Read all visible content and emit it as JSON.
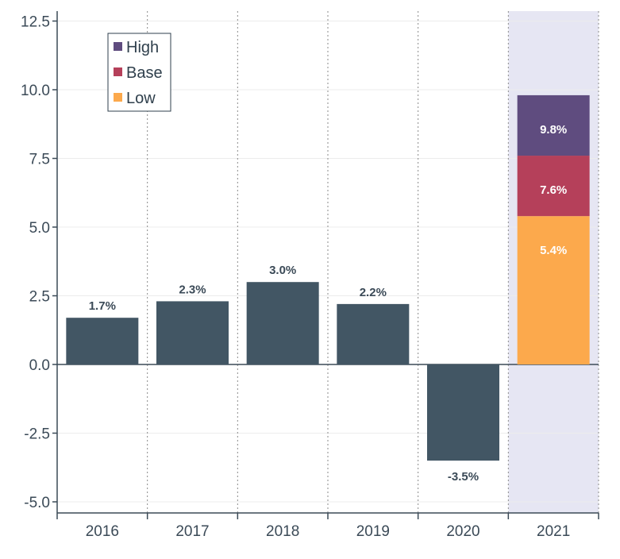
{
  "chart_data": {
    "type": "bar",
    "title": "",
    "xlabel": "",
    "ylabel": "",
    "ylim": [
      -5.5,
      13.0
    ],
    "yticks": [
      12.5,
      10.0,
      7.5,
      5.0,
      2.5,
      0.0,
      -2.5,
      -5.0
    ],
    "ytick_labels": [
      "12.5",
      "10.0",
      "7.5",
      "5.0",
      "2.5",
      "0.0",
      "-2.5",
      "-5.0"
    ],
    "categories": [
      "2016",
      "2017",
      "2018",
      "2019",
      "2020",
      "2021"
    ],
    "series": [
      {
        "name": "",
        "values": [
          1.7,
          2.3,
          3.0,
          2.2,
          -3.5,
          null
        ],
        "labels": [
          "1.7%",
          "2.3%",
          "3.0%",
          "2.2%",
          "-3.5%",
          ""
        ],
        "color": "#425664"
      },
      {
        "name": "Low",
        "values": [
          null,
          null,
          null,
          null,
          null,
          5.4
        ],
        "labels": [
          "",
          "",
          "",
          "",
          "",
          "5.4%"
        ],
        "color": "#fca94c"
      },
      {
        "name": "Base",
        "values": [
          null,
          null,
          null,
          null,
          null,
          7.6
        ],
        "labels": [
          "",
          "",
          "",
          "",
          "",
          "7.6%"
        ],
        "color": "#b5405a"
      },
      {
        "name": "High",
        "values": [
          null,
          null,
          null,
          null,
          null,
          9.8
        ],
        "labels": [
          "",
          "",
          "",
          "",
          "",
          "9.8%"
        ],
        "color": "#5f4c7f"
      }
    ],
    "highlight_category": "2021",
    "highlight_color": "#e6e6f3",
    "legend": {
      "position": "top-left",
      "entries": [
        "High",
        "Base",
        "Low"
      ]
    },
    "grid": {
      "horizontal": true,
      "vertical_dotted_separators": true
    }
  }
}
